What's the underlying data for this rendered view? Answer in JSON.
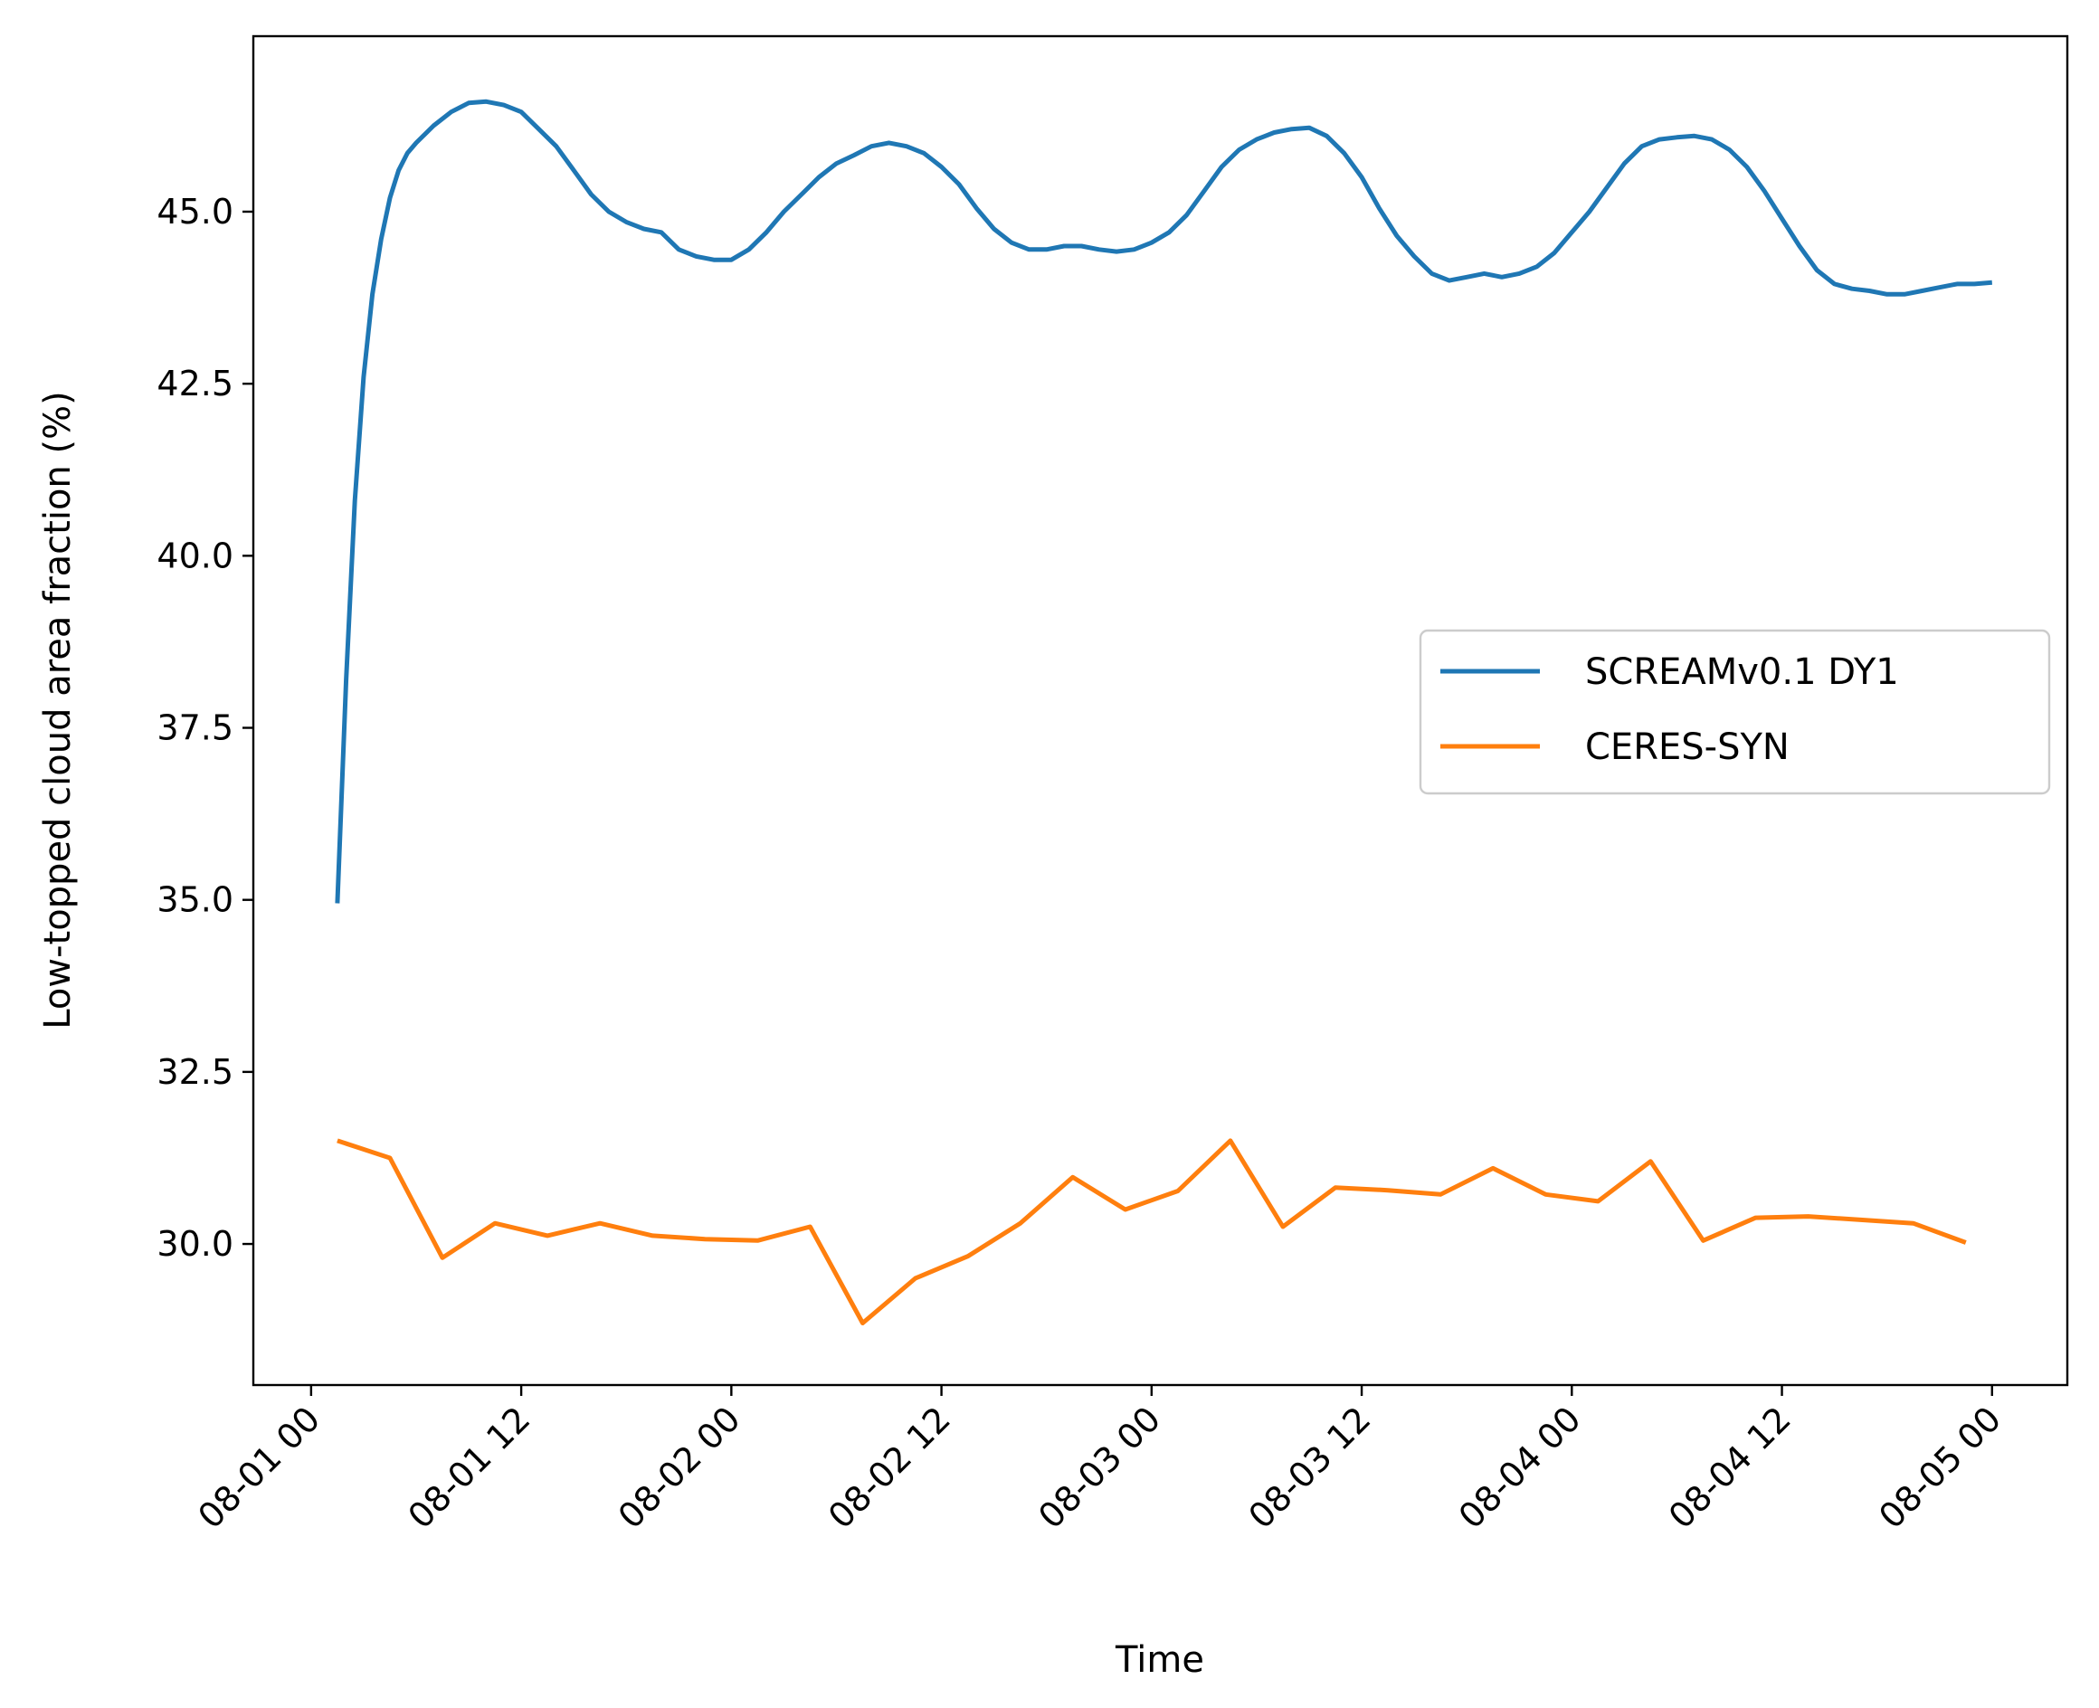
{
  "chart_data": {
    "type": "line",
    "xlabel": "Time",
    "ylabel": "Low-topped cloud area fraction (%)",
    "x_ticks": [
      "08-01 00",
      "08-01 12",
      "08-02 00",
      "08-02 12",
      "08-03 00",
      "08-03 12",
      "08-04 00",
      "08-04 12",
      "08-05 00"
    ],
    "x_tick_hours": [
      0,
      12,
      24,
      36,
      48,
      60,
      72,
      84,
      96
    ],
    "y_ticks": [
      "30.0",
      "32.5",
      "35.0",
      "37.5",
      "40.0",
      "42.5",
      "45.0"
    ],
    "y_tick_values": [
      30.0,
      32.5,
      35.0,
      37.5,
      40.0,
      42.5,
      45.0
    ],
    "xlim_hours": [
      -3.3,
      100.3
    ],
    "ylim": [
      27.95,
      47.55
    ],
    "grid": false,
    "legend_position": "center-right",
    "colors": {
      "series1": "#1f77b4",
      "series2": "#ff7f0e"
    },
    "series": [
      {
        "name": "SCREAMv0.1 DY1",
        "color": "#1f77b4",
        "x_hours": [
          1.5,
          2.0,
          2.5,
          3.0,
          3.5,
          4.0,
          4.5,
          5.0,
          5.5,
          6.0,
          7.0,
          8.0,
          9.0,
          10.0,
          11.0,
          12.0,
          13.0,
          14.0,
          15.0,
          16.0,
          17.0,
          18.0,
          19.0,
          20.0,
          21.0,
          22.0,
          23.0,
          24.0,
          25.0,
          26.0,
          27.0,
          28.0,
          29.0,
          30.0,
          31.0,
          32.0,
          33.0,
          34.0,
          35.0,
          36.0,
          37.0,
          38.0,
          39.0,
          40.0,
          41.0,
          42.0,
          43.0,
          44.0,
          45.0,
          46.0,
          47.0,
          48.0,
          49.0,
          50.0,
          51.0,
          52.0,
          53.0,
          54.0,
          55.0,
          56.0,
          57.0,
          58.0,
          59.0,
          60.0,
          61.0,
          62.0,
          63.0,
          64.0,
          65.0,
          66.0,
          67.0,
          68.0,
          69.0,
          70.0,
          71.0,
          72.0,
          73.0,
          74.0,
          75.0,
          76.0,
          77.0,
          78.0,
          79.0,
          80.0,
          81.0,
          82.0,
          83.0,
          84.0,
          85.0,
          86.0,
          87.0,
          88.0,
          89.0,
          90.0,
          91.0,
          92.0,
          93.0,
          94.0,
          95.0,
          96.0
        ],
        "values": [
          34.95,
          38.2,
          40.8,
          42.6,
          43.8,
          44.6,
          45.2,
          45.6,
          45.85,
          46.0,
          46.25,
          46.45,
          46.58,
          46.6,
          46.55,
          46.45,
          46.2,
          45.95,
          45.6,
          45.25,
          45.0,
          44.85,
          44.75,
          44.7,
          44.45,
          44.35,
          44.3,
          44.3,
          44.45,
          44.7,
          45.0,
          45.25,
          45.5,
          45.7,
          45.82,
          45.95,
          46.0,
          45.95,
          45.85,
          45.65,
          45.4,
          45.05,
          44.75,
          44.55,
          44.45,
          44.45,
          44.5,
          44.5,
          44.45,
          44.42,
          44.45,
          44.55,
          44.7,
          44.95,
          45.3,
          45.65,
          45.9,
          46.05,
          46.15,
          46.2,
          46.22,
          46.1,
          45.85,
          45.5,
          45.05,
          44.65,
          44.35,
          44.1,
          44.0,
          44.05,
          44.1,
          44.05,
          44.1,
          44.2,
          44.4,
          44.7,
          45.0,
          45.35,
          45.7,
          45.95,
          46.05,
          46.08,
          46.1,
          46.05,
          45.9,
          45.65,
          45.3,
          44.9,
          44.5,
          44.15,
          43.95,
          43.88,
          43.85,
          43.8,
          43.8,
          43.85,
          43.9,
          43.95,
          43.95,
          43.97
        ]
      },
      {
        "name": "CERES-SYN",
        "color": "#ff7f0e",
        "x_hours": [
          1.5,
          4.5,
          7.5,
          10.5,
          13.5,
          16.5,
          19.5,
          22.5,
          25.5,
          28.5,
          31.5,
          34.5,
          37.5,
          40.5,
          43.5,
          46.5,
          49.5,
          52.5,
          55.5,
          58.5,
          61.5,
          64.5,
          67.5,
          70.5,
          73.5,
          76.5,
          79.5,
          82.5,
          85.5,
          88.5,
          91.5,
          94.5
        ],
        "values": [
          31.5,
          31.25,
          29.8,
          30.3,
          30.12,
          30.3,
          30.12,
          30.07,
          30.05,
          30.25,
          28.85,
          29.5,
          29.82,
          30.3,
          30.97,
          30.5,
          30.77,
          31.5,
          30.25,
          30.82,
          30.78,
          30.72,
          31.1,
          30.72,
          30.62,
          31.2,
          30.05,
          30.38,
          30.4,
          30.35,
          30.3,
          30.02
        ]
      }
    ]
  }
}
